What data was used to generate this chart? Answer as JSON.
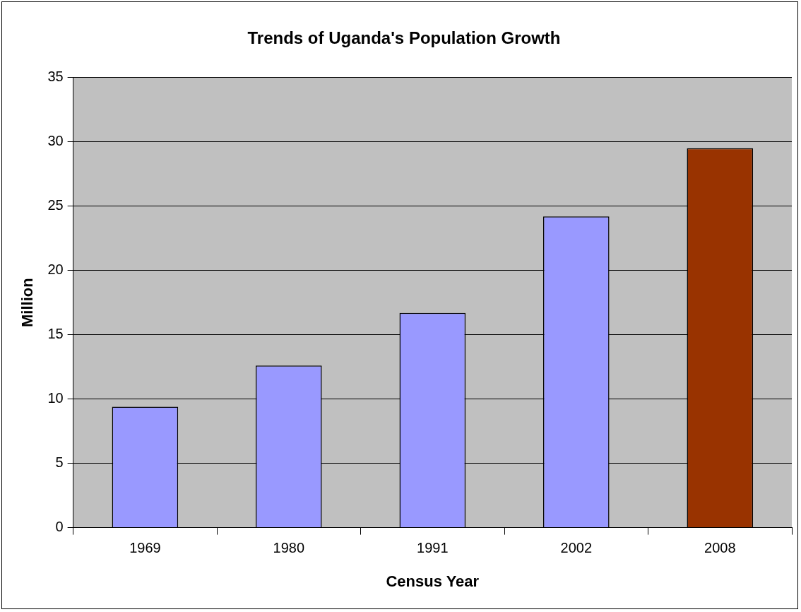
{
  "chart_data": {
    "type": "bar",
    "title": "Trends of Uganda's Population Growth",
    "xlabel": "Census Year",
    "ylabel": "Million",
    "categories": [
      "1969",
      "1980",
      "1991",
      "2002",
      "2008"
    ],
    "values": [
      9.4,
      12.6,
      16.7,
      24.2,
      29.5
    ],
    "colors": [
      "#9999ff",
      "#9999ff",
      "#9999ff",
      "#9999ff",
      "#993300"
    ],
    "ylim": [
      0,
      35
    ],
    "yticks": [
      0,
      5,
      10,
      15,
      20,
      25,
      30,
      35
    ],
    "grid": "y",
    "legend": false
  }
}
